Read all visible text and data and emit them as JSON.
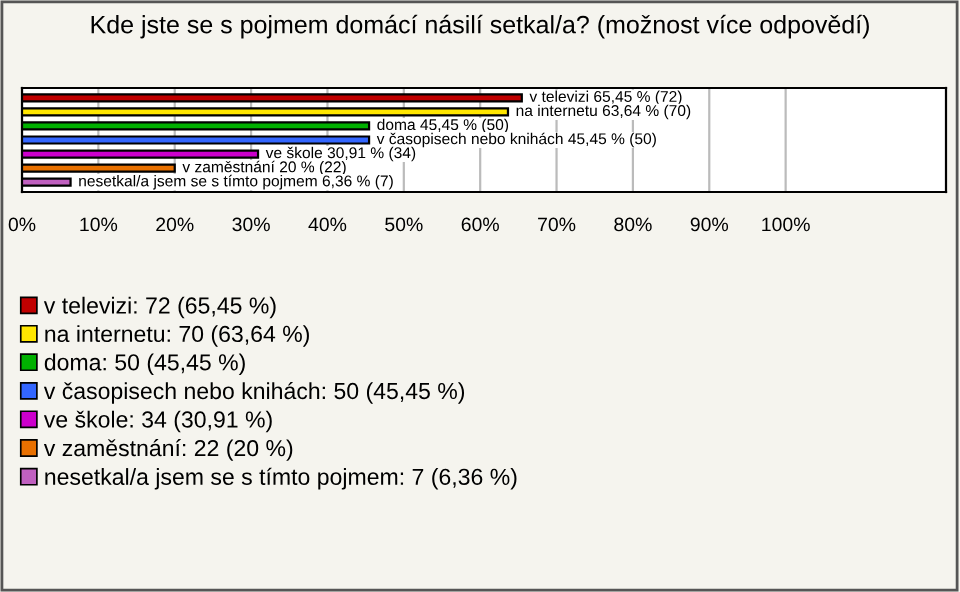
{
  "chart_data": {
    "type": "bar",
    "orientation": "horizontal",
    "title": "Kde jste se s pojmem domácí násilí setkal/a? (možnost více odpovědí)",
    "categories": [
      null,
      null,
      null,
      null,
      null,
      null,
      null
    ],
    "series": [
      {
        "name": "v televizi: 72 (65,45 %)",
        "color": "#c00000",
        "values": [
          65.45,
          null,
          null,
          null,
          null,
          null,
          null
        ],
        "value_labels": [
          "v televizi 65,45 % (72)",
          null,
          null,
          null,
          null,
          null,
          null
        ]
      },
      {
        "name": "na internetu: 70 (63,64 %)",
        "color": "#ffe600",
        "values": [
          null,
          63.64,
          null,
          null,
          null,
          null,
          null
        ],
        "value_labels": [
          null,
          "na internetu 63,64 % (70)",
          null,
          null,
          null,
          null,
          null
        ]
      },
      {
        "name": "doma: 50 (45,45 %)",
        "color": "#00b000",
        "values": [
          null,
          null,
          45.45,
          null,
          null,
          null,
          null
        ],
        "value_labels": [
          null,
          null,
          "doma 45,45 % (50)",
          null,
          null,
          null,
          null
        ]
      },
      {
        "name": "v časopisech nebo knihách: 50 (45,45 %)",
        "color": "#3366ff",
        "values": [
          null,
          null,
          null,
          45.45,
          null,
          null,
          null
        ],
        "value_labels": [
          null,
          null,
          null,
          "v časopisech nebo knihách 45,45 % (50)",
          null,
          null,
          null
        ]
      },
      {
        "name": "ve škole: 34 (30,91 %)",
        "color": "#cc00cc",
        "values": [
          null,
          null,
          null,
          null,
          30.91,
          null,
          null
        ],
        "value_labels": [
          null,
          null,
          null,
          null,
          "ve škole 30,91 % (34)",
          null,
          null
        ]
      },
      {
        "name": "v zaměstnání: 22 (20 %)",
        "color": "#e87000",
        "values": [
          null,
          null,
          null,
          null,
          null,
          20,
          null
        ],
        "value_labels": [
          null,
          null,
          null,
          null,
          null,
          "v zaměstnání 20 % (22)",
          null
        ]
      },
      {
        "name": "nesetkal/a jsem se s tímto pojmem: 7 (6,36 %)",
        "color": "#c060c0",
        "values": [
          null,
          null,
          null,
          null,
          null,
          null,
          6.36
        ],
        "value_labels": [
          null,
          null,
          null,
          null,
          null,
          null,
          "nesetkal/a jsem se s tímto pojmem 6,36 % (7)"
        ]
      }
    ],
    "xlim": [
      0,
      121
    ],
    "xticks": [
      {
        "value": 0,
        "label": "0%"
      },
      {
        "value": 10,
        "label": "10%"
      },
      {
        "value": 20,
        "label": "20%"
      },
      {
        "value": 30,
        "label": "30%"
      },
      {
        "value": 40,
        "label": "40%"
      },
      {
        "value": 50,
        "label": "50%"
      },
      {
        "value": 60,
        "label": "60%"
      },
      {
        "value": 70,
        "label": "70%"
      },
      {
        "value": 80,
        "label": "80%"
      },
      {
        "value": 90,
        "label": "90%"
      },
      {
        "value": 100,
        "label": "100%"
      }
    ],
    "grid": "x",
    "legend": "bottom"
  }
}
